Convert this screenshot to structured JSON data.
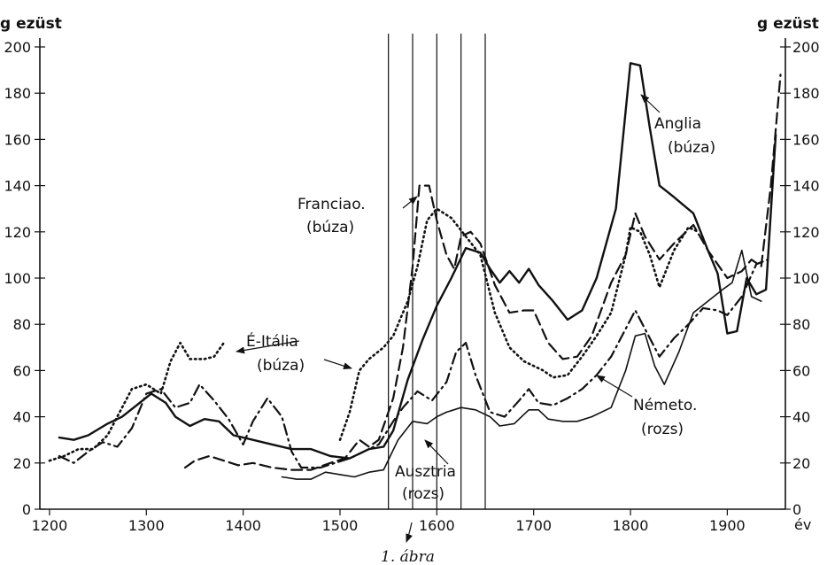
{
  "chart_data": {
    "type": "line",
    "ylabel_left": "g ezüst",
    "ylabel_right": "g ezüst",
    "xlabel": "év",
    "caption": "1. ábra",
    "xlim": [
      1190,
      1960
    ],
    "ylim": [
      0,
      200
    ],
    "x_ticks": [
      1200,
      1300,
      1400,
      1500,
      1600,
      1700,
      1800,
      1900
    ],
    "y_ticks": [
      0,
      20,
      40,
      60,
      80,
      100,
      120,
      140,
      160,
      180,
      200
    ],
    "grid": false,
    "vertical_markers": [
      1550,
      1575,
      1600,
      1625,
      1650
    ],
    "series": [
      {
        "name": "Anglia (búza)",
        "style": "solid",
        "width": 2.4,
        "points": [
          [
            1210,
            31
          ],
          [
            1225,
            30
          ],
          [
            1240,
            32
          ],
          [
            1260,
            37
          ],
          [
            1275,
            40
          ],
          [
            1290,
            45
          ],
          [
            1305,
            50
          ],
          [
            1320,
            46
          ],
          [
            1330,
            40
          ],
          [
            1345,
            36
          ],
          [
            1360,
            39
          ],
          [
            1375,
            38
          ],
          [
            1390,
            32
          ],
          [
            1410,
            30
          ],
          [
            1430,
            28
          ],
          [
            1450,
            26
          ],
          [
            1470,
            26
          ],
          [
            1490,
            23
          ],
          [
            1510,
            22
          ],
          [
            1530,
            26
          ],
          [
            1545,
            27
          ],
          [
            1555,
            34
          ],
          [
            1570,
            56
          ],
          [
            1585,
            73
          ],
          [
            1600,
            88
          ],
          [
            1615,
            100
          ],
          [
            1630,
            113
          ],
          [
            1645,
            111
          ],
          [
            1655,
            104
          ],
          [
            1665,
            98
          ],
          [
            1675,
            103
          ],
          [
            1685,
            98
          ],
          [
            1695,
            104
          ],
          [
            1705,
            97
          ],
          [
            1720,
            90
          ],
          [
            1735,
            82
          ],
          [
            1750,
            86
          ],
          [
            1765,
            100
          ],
          [
            1785,
            130
          ],
          [
            1800,
            193
          ],
          [
            1810,
            192
          ],
          [
            1820,
            165
          ],
          [
            1830,
            140
          ],
          [
            1845,
            135
          ],
          [
            1865,
            128
          ],
          [
            1880,
            112
          ],
          [
            1890,
            102
          ],
          [
            1900,
            76
          ],
          [
            1910,
            77
          ],
          [
            1920,
            100
          ],
          [
            1930,
            93
          ],
          [
            1940,
            95
          ],
          [
            1950,
            162
          ]
        ]
      },
      {
        "name": "Franciao. (búza)",
        "style": "dashed",
        "width": 2.2,
        "points": [
          [
            1340,
            18
          ],
          [
            1350,
            21
          ],
          [
            1365,
            23
          ],
          [
            1380,
            21
          ],
          [
            1395,
            19
          ],
          [
            1410,
            20
          ],
          [
            1430,
            18
          ],
          [
            1450,
            17
          ],
          [
            1470,
            17
          ],
          [
            1490,
            20
          ],
          [
            1505,
            22
          ],
          [
            1520,
            30
          ],
          [
            1530,
            27
          ],
          [
            1540,
            30
          ],
          [
            1555,
            48
          ],
          [
            1565,
            70
          ],
          [
            1575,
            105
          ],
          [
            1582,
            140
          ],
          [
            1592,
            140
          ],
          [
            1600,
            125
          ],
          [
            1610,
            110
          ],
          [
            1618,
            104
          ],
          [
            1625,
            118
          ],
          [
            1635,
            120
          ],
          [
            1645,
            115
          ],
          [
            1660,
            97
          ],
          [
            1675,
            85
          ],
          [
            1690,
            86
          ],
          [
            1700,
            86
          ],
          [
            1715,
            72
          ],
          [
            1730,
            65
          ],
          [
            1745,
            66
          ],
          [
            1760,
            75
          ],
          [
            1780,
            98
          ],
          [
            1795,
            110
          ],
          [
            1805,
            128
          ],
          [
            1815,
            118
          ],
          [
            1830,
            108
          ],
          [
            1845,
            115
          ],
          [
            1865,
            123
          ],
          [
            1880,
            112
          ],
          [
            1900,
            100
          ],
          [
            1915,
            103
          ],
          [
            1925,
            108
          ],
          [
            1935,
            105
          ],
          [
            1945,
            140
          ],
          [
            1955,
            188
          ]
        ]
      },
      {
        "name": "É-Itália (búza)",
        "style": "dotted",
        "width": 2.6,
        "segments": [
          [
            [
              1200,
              21
            ],
            [
              1215,
              23
            ],
            [
              1230,
              26
            ],
            [
              1245,
              26
            ],
            [
              1260,
              32
            ],
            [
              1275,
              44
            ],
            [
              1285,
              52
            ],
            [
              1300,
              54
            ],
            [
              1315,
              50
            ],
            [
              1325,
              64
            ],
            [
              1335,
              72
            ],
            [
              1345,
              65
            ],
            [
              1360,
              65
            ],
            [
              1370,
              66
            ],
            [
              1380,
              72
            ]
          ],
          [
            [
              1500,
              30
            ],
            [
              1510,
              42
            ],
            [
              1520,
              60
            ],
            [
              1530,
              65
            ],
            [
              1545,
              70
            ],
            [
              1555,
              75
            ],
            [
              1570,
              90
            ],
            [
              1580,
              105
            ],
            [
              1590,
              125
            ],
            [
              1600,
              130
            ],
            [
              1615,
              126
            ],
            [
              1630,
              118
            ],
            [
              1645,
              110
            ],
            [
              1660,
              85
            ],
            [
              1675,
              70
            ],
            [
              1690,
              64
            ],
            [
              1700,
              62
            ],
            [
              1710,
              60
            ],
            [
              1720,
              57
            ],
            [
              1735,
              58
            ],
            [
              1750,
              66
            ],
            [
              1765,
              75
            ],
            [
              1780,
              85
            ],
            [
              1795,
              110
            ],
            [
              1800,
              122
            ],
            [
              1810,
              120
            ],
            [
              1820,
              110
            ],
            [
              1830,
              96
            ],
            [
              1845,
              112
            ],
            [
              1860,
              122
            ],
            [
              1870,
              120
            ]
          ]
        ]
      },
      {
        "name": "Németo. (rozs)",
        "style": "dashdot",
        "width": 2.2,
        "points": [
          [
            1210,
            23
          ],
          [
            1225,
            20
          ],
          [
            1240,
            25
          ],
          [
            1255,
            29
          ],
          [
            1270,
            27
          ],
          [
            1285,
            35
          ],
          [
            1300,
            50
          ],
          [
            1315,
            52
          ],
          [
            1330,
            44
          ],
          [
            1345,
            46
          ],
          [
            1355,
            54
          ],
          [
            1370,
            47
          ],
          [
            1385,
            39
          ],
          [
            1400,
            28
          ],
          [
            1410,
            38
          ],
          [
            1425,
            48
          ],
          [
            1440,
            40
          ],
          [
            1450,
            25
          ],
          [
            1460,
            18
          ],
          [
            1480,
            18
          ],
          [
            1495,
            20
          ],
          [
            1510,
            22
          ],
          [
            1525,
            25
          ],
          [
            1540,
            28
          ],
          [
            1555,
            38
          ],
          [
            1565,
            44
          ],
          [
            1580,
            51
          ],
          [
            1595,
            47
          ],
          [
            1610,
            55
          ],
          [
            1620,
            68
          ],
          [
            1630,
            72
          ],
          [
            1640,
            58
          ],
          [
            1655,
            42
          ],
          [
            1670,
            40
          ],
          [
            1685,
            47
          ],
          [
            1695,
            52
          ],
          [
            1705,
            46
          ],
          [
            1720,
            45
          ],
          [
            1735,
            48
          ],
          [
            1750,
            52
          ],
          [
            1765,
            58
          ],
          [
            1780,
            66
          ],
          [
            1795,
            78
          ],
          [
            1805,
            86
          ],
          [
            1815,
            78
          ],
          [
            1830,
            66
          ],
          [
            1845,
            74
          ],
          [
            1860,
            80
          ],
          [
            1875,
            87
          ],
          [
            1890,
            86
          ],
          [
            1900,
            84
          ],
          [
            1915,
            92
          ],
          [
            1930,
            106
          ],
          [
            1942,
            108
          ]
        ]
      },
      {
        "name": "Ausztria (rozs)",
        "style": "solid-thin",
        "width": 1.6,
        "points": [
          [
            1440,
            14
          ],
          [
            1455,
            13
          ],
          [
            1470,
            13
          ],
          [
            1485,
            16
          ],
          [
            1500,
            15
          ],
          [
            1515,
            14
          ],
          [
            1530,
            16
          ],
          [
            1545,
            17
          ],
          [
            1560,
            30
          ],
          [
            1575,
            38
          ],
          [
            1590,
            37
          ],
          [
            1600,
            40
          ],
          [
            1610,
            42
          ],
          [
            1625,
            44
          ],
          [
            1640,
            43
          ],
          [
            1655,
            40
          ],
          [
            1665,
            36
          ],
          [
            1680,
            37
          ],
          [
            1695,
            43
          ],
          [
            1705,
            43
          ],
          [
            1715,
            39
          ],
          [
            1730,
            38
          ],
          [
            1745,
            38
          ],
          [
            1760,
            40
          ],
          [
            1780,
            44
          ],
          [
            1795,
            60
          ],
          [
            1805,
            75
          ],
          [
            1815,
            76
          ],
          [
            1825,
            62
          ],
          [
            1835,
            54
          ],
          [
            1850,
            68
          ],
          [
            1865,
            85
          ],
          [
            1880,
            90
          ],
          [
            1895,
            95
          ],
          [
            1905,
            98
          ],
          [
            1915,
            112
          ],
          [
            1925,
            92
          ],
          [
            1935,
            90
          ]
        ]
      }
    ],
    "annotations": [
      {
        "lines": [
          "Franciao.",
          "(búza)"
        ]
      },
      {
        "lines": [
          "Anglia",
          "(búza)"
        ]
      },
      {
        "lines": [
          "É-Itália",
          "(búza)"
        ]
      },
      {
        "lines": [
          "Németo.",
          "(rozs)"
        ]
      },
      {
        "lines": [
          "Ausztria",
          "(rozs)"
        ]
      }
    ]
  }
}
